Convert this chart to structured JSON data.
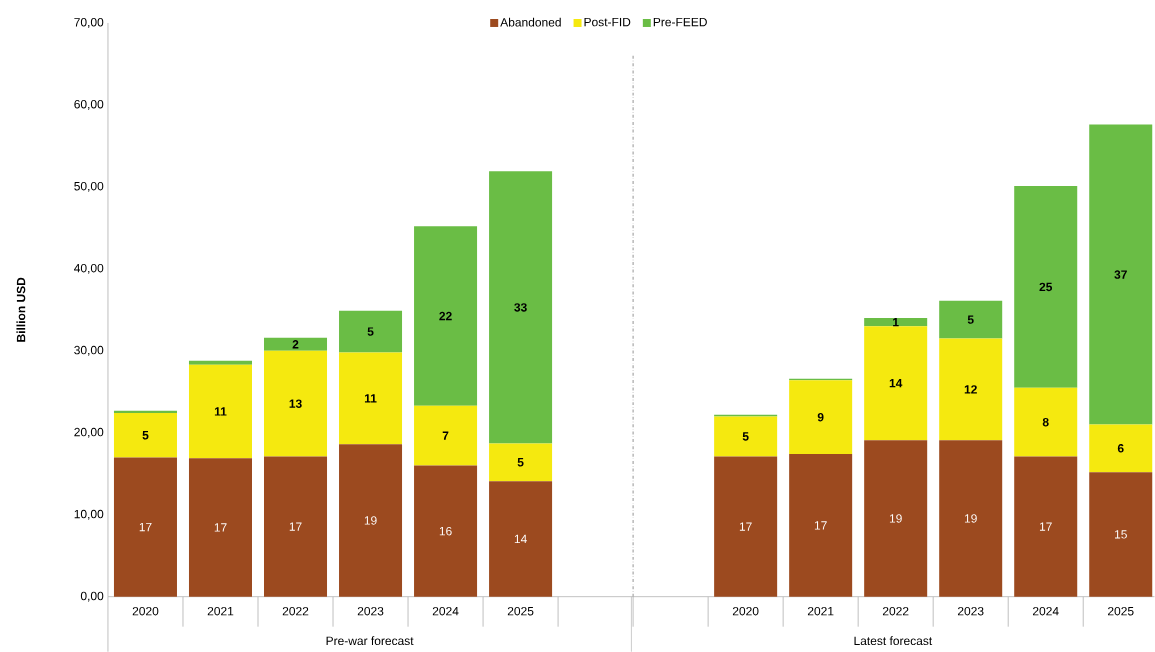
{
  "chart_data": {
    "type": "bar",
    "stacked": true,
    "categories": [
      "2020",
      "2021",
      "2022",
      "2023",
      "2024",
      "2025",
      null,
      null,
      "2020",
      "2021",
      "2022",
      "2023",
      "2024",
      "2025"
    ],
    "series": [
      {
        "name": "Abandoned",
        "color": "#9c4a1f",
        "values": [
          17.0,
          16.9,
          17.1,
          18.6,
          16.0,
          14.1,
          null,
          null,
          17.1,
          17.4,
          19.1,
          19.1,
          17.1,
          15.2
        ],
        "value_labels": [
          "17",
          "17",
          "17",
          "19",
          "16",
          "14",
          null,
          null,
          "17",
          "17",
          "19",
          "19",
          "17",
          "15"
        ]
      },
      {
        "name": "Post-FID",
        "color": "#f5e90f",
        "values": [
          5.4,
          11.4,
          12.9,
          11.2,
          7.3,
          4.6,
          null,
          null,
          4.9,
          9.0,
          13.9,
          12.4,
          8.4,
          5.8
        ],
        "value_labels": [
          "5",
          "11",
          "13",
          "11",
          "7",
          "5",
          null,
          null,
          "5",
          "9",
          "14",
          "12",
          "8",
          "6"
        ]
      },
      {
        "name": "Pre-FEED",
        "color": "#6abd45",
        "values": [
          0.3,
          0.5,
          1.6,
          5.1,
          21.9,
          33.2,
          null,
          null,
          0.2,
          0.2,
          1.0,
          4.6,
          24.6,
          36.6
        ],
        "value_labels": [
          null,
          null,
          "2",
          "5",
          "22",
          "33",
          null,
          null,
          null,
          null,
          "1",
          "5",
          "25",
          "37"
        ]
      }
    ],
    "ylabel": "Billion USD",
    "ylim": [
      0,
      70
    ],
    "yticks": [
      {
        "value": 0,
        "label": "0,00"
      },
      {
        "value": 10,
        "label": "10,00"
      },
      {
        "value": 20,
        "label": "20,00"
      },
      {
        "value": 30,
        "label": "30,00"
      },
      {
        "value": 40,
        "label": "40,00"
      },
      {
        "value": 50,
        "label": "50,00"
      },
      {
        "value": 60,
        "label": "60,00"
      },
      {
        "value": 70,
        "label": "70,00"
      }
    ],
    "annotations": [
      "Pre-war forecast",
      "Latest forecast"
    ],
    "legend": "top",
    "grid": false
  }
}
